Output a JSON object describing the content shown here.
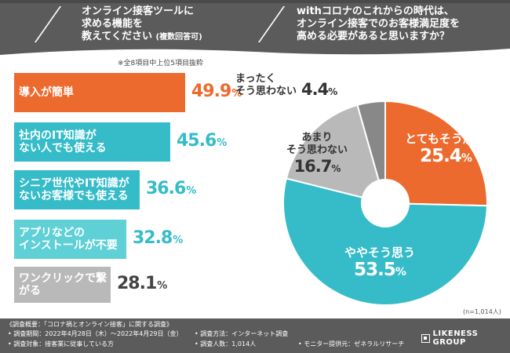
{
  "header": {
    "q1_line1": "オンライン接客ツールに",
    "q1_line2": "求める機能を",
    "q1_line3": "教えてください",
    "q1_note": "(複数回答可)",
    "q2_line1": "withコロナのこれからの時代は、",
    "q2_line2": "オンライン接客でのお客様満足度を",
    "q2_line3": "高める必要があると思いますか？"
  },
  "note": "※全8項目中上位5項目抜粋",
  "chart_data": [
    {
      "type": "bar",
      "title": "オンライン接客ツールに求める機能を教えてください(複数回答可)",
      "categories": [
        "導入が簡単",
        "社内のIT知識が\nない人でも使える",
        "シニア世代やIT知識が\nないお客様でも使える",
        "アプリなどの\nインストールが不要",
        "ワンクリックで繋がる"
      ],
      "values": [
        49.9,
        45.6,
        36.6,
        32.8,
        28.1
      ],
      "value_labels": [
        "49.9",
        "45.6",
        "36.6",
        "32.8",
        "28.1"
      ],
      "unit": "%",
      "colors": [
        "#ed6a2e",
        "#35bcc8",
        "#35bcc8",
        "#5fd0d6",
        "#b9b9b9"
      ]
    },
    {
      "type": "pie",
      "title": "withコロナのこれからの時代は、オンライン接客でのお客様満足度を高める必要があると思いますか？",
      "slices": [
        {
          "label": "とてもそう思う",
          "value": 25.4,
          "value_label": "25.4",
          "color": "#ed6a2e"
        },
        {
          "label": "ややそう思う",
          "value": 53.5,
          "value_label": "53.5",
          "color": "#35bcc8"
        },
        {
          "label": "あまり\nそう思わない",
          "value": 16.7,
          "value_label": "16.7",
          "color": "#b9b9b9"
        },
        {
          "label": "まったく\nそう思わない",
          "value": 4.4,
          "value_label": "4.4",
          "color": "#888888"
        }
      ],
      "unit": "%",
      "n": "(n=1,014人)"
    }
  ],
  "footer": {
    "title": "《調査概要：「コロナ禍とオンライン接客」に関する調査》",
    "period": "• 調査期間：2022年4月28日（木）〜2022年4月29日（金）",
    "target": "• 調査対象：接客業に従事している方",
    "method": "• 調査方法：インターネット調査",
    "people": "• 調査人数：1,014人",
    "provider": "• モニター提供元：ゼネラルリサーチ",
    "logo": "LIKENESS GROUP"
  }
}
